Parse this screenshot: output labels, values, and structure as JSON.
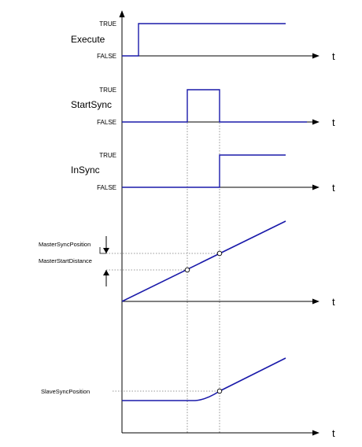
{
  "colors": {
    "signal": "#1a1aaa",
    "axis": "#000000",
    "guide": "#777777",
    "marker_fill": "#ffffff"
  },
  "axis_label": "t",
  "true_label": "TRUE",
  "false_label": "FALSE",
  "signals": {
    "execute": "Execute",
    "start_sync": "StartSync",
    "in_sync": "InSync"
  },
  "annotations": {
    "master_sync_position": "MasterSyncPosition",
    "master_start_distance": "MasterStartDistance",
    "slave_sync_position": "SlaveSyncPosition"
  }
}
